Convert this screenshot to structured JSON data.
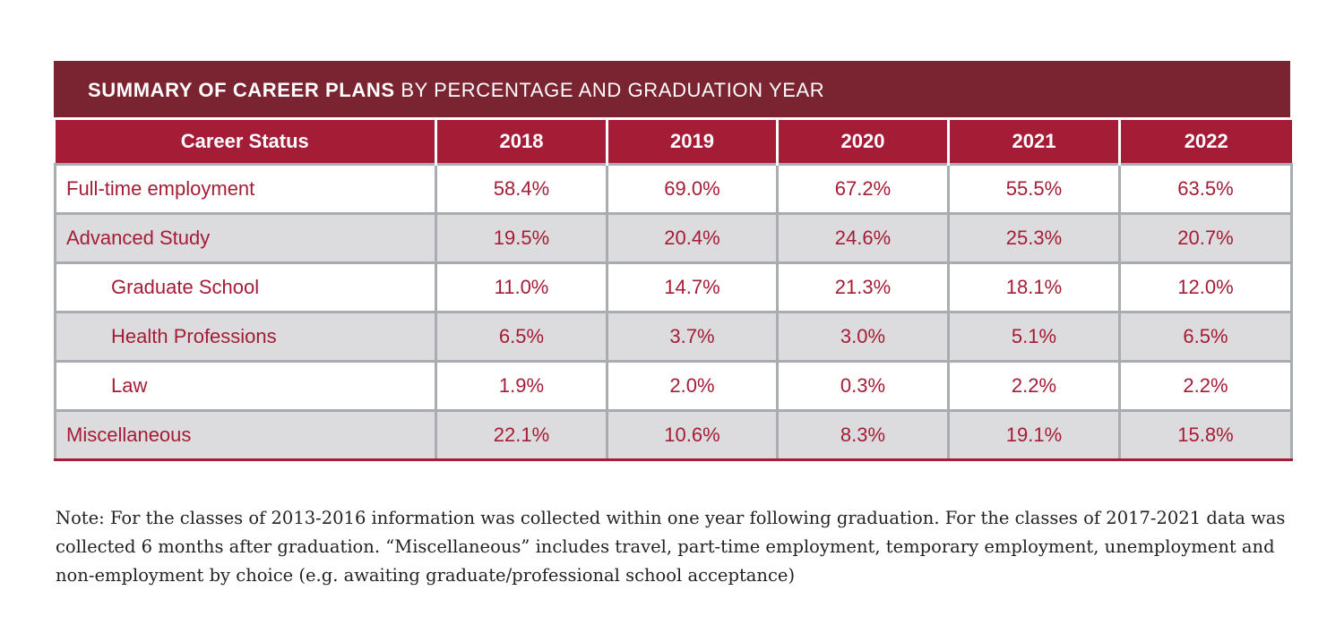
{
  "title": {
    "bold": "SUMMARY OF CAREER PLANS",
    "rest": " BY PERCENTAGE AND GRADUATION YEAR"
  },
  "table": {
    "headers": [
      "Career Status",
      "2018",
      "2019",
      "2020",
      "2021",
      "2022"
    ],
    "rows": [
      {
        "label": "Full-time employment",
        "values": [
          "58.4%",
          "69.0%",
          "67.2%",
          "55.5%",
          "63.5%"
        ]
      },
      {
        "label": "Advanced Study",
        "values": [
          "19.5%",
          "20.4%",
          "24.6%",
          "25.3%",
          "20.7%"
        ]
      },
      {
        "label": "Graduate School",
        "values": [
          "11.0%",
          "14.7%",
          "21.3%",
          "18.1%",
          "12.0%"
        ]
      },
      {
        "label": "Health Professions",
        "values": [
          "6.5%",
          "3.7%",
          "3.0%",
          "5.1%",
          "6.5%"
        ]
      },
      {
        "label": "Law",
        "values": [
          "1.9%",
          "2.0%",
          "0.3%",
          "2.2%",
          "2.2%"
        ]
      },
      {
        "label": "Miscellaneous",
        "values": [
          "22.1%",
          "10.6%",
          "8.3%",
          "19.1%",
          "15.8%"
        ]
      }
    ]
  },
  "note": "Note: For the classes of 2013-2016 information was collected within one year following graduation. For the classes of 2017-2021 data was collected 6 months after graduation. “Miscellaneous” includes travel, part-time employment, temporary employment, unemployment and non-employment by choice (e.g. awaiting graduate/professional school acceptance)",
  "colors": {
    "title_bg": "#7a2331",
    "header_bg": "#a51c36",
    "text": "#a51c36",
    "alt_row": "#dcdcde"
  }
}
